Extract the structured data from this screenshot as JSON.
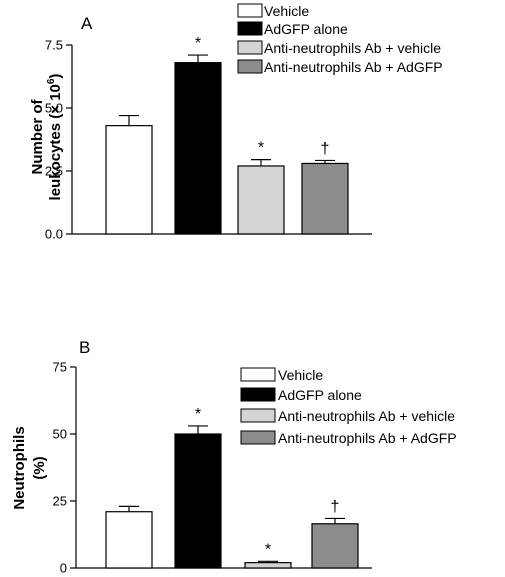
{
  "chart_data": [
    {
      "type": "bar",
      "panel_label": "A",
      "ylabel_line1": "Number of",
      "ylabel_line2": "leukocytes (× 10",
      "ylabel_superscript": "6",
      "ylabel_close": ")",
      "ylim": [
        0,
        7.5
      ],
      "yticks": [
        0,
        2.5,
        5,
        7.5
      ],
      "ytick_labels": [
        "0.0",
        "2.5",
        "5.0",
        "7.5"
      ],
      "legend_position": "top-right",
      "categories": [
        "Vehicle",
        "AdGFP alone",
        "Anti-neutrophils Ab + vehicle",
        "Anti-neutrophils Ab + AdGFP"
      ],
      "values": [
        4.3,
        6.8,
        2.7,
        2.8
      ],
      "errors": [
        0.4,
        0.3,
        0.25,
        0.12
      ],
      "significance": [
        "",
        "*",
        "*",
        "†"
      ],
      "colors": [
        "#ffffff",
        "#000000",
        "#d4d4d4",
        "#8c8c8c"
      ]
    },
    {
      "type": "bar",
      "panel_label": "B",
      "ylabel_line1": "Neutrophils",
      "ylabel_line2": "(%)",
      "ylim": [
        0,
        75
      ],
      "yticks": [
        0,
        25,
        50,
        75
      ],
      "ytick_labels": [
        "0",
        "25",
        "50",
        "75"
      ],
      "legend_position": "top-right",
      "categories": [
        "Vehicle",
        "AdGFP alone",
        "Anti-neutrophils Ab + vehicle",
        "Anti-neutrophils Ab + AdGFP"
      ],
      "values": [
        21,
        50,
        2,
        16.5
      ],
      "errors": [
        2,
        3,
        0.5,
        2
      ],
      "significance": [
        "",
        "*",
        "*",
        "†"
      ],
      "colors": [
        "#ffffff",
        "#000000",
        "#d4d4d4",
        "#8c8c8c"
      ]
    }
  ]
}
